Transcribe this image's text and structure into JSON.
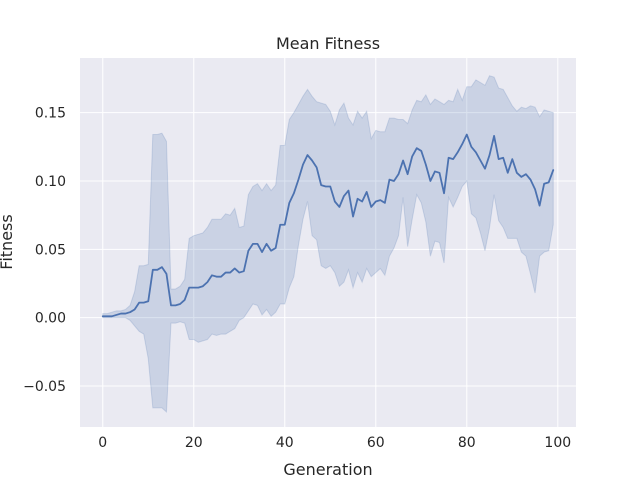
{
  "chart_data": {
    "type": "line",
    "title": "Mean Fitness",
    "xlabel": "Generation",
    "ylabel": "Fitness",
    "xlim": [
      -5,
      104
    ],
    "ylim": [
      -0.08,
      0.19
    ],
    "xticks": [
      0,
      20,
      40,
      60,
      80,
      100
    ],
    "xtick_labels": [
      "0",
      "20",
      "40",
      "60",
      "80",
      "100"
    ],
    "yticks": [
      -0.05,
      0.0,
      0.05,
      0.1,
      0.15
    ],
    "ytick_labels": [
      "−0.05",
      "0.00",
      "0.05",
      "0.10",
      "0.15"
    ],
    "grid": true,
    "colors": {
      "line": "#4c72b0",
      "band": "#4c72b0",
      "plot_bg": "#eaeaf2",
      "grid": "#ffffff"
    },
    "x": [
      0,
      1,
      2,
      3,
      4,
      5,
      6,
      7,
      8,
      9,
      10,
      11,
      12,
      13,
      14,
      15,
      16,
      17,
      18,
      19,
      20,
      21,
      22,
      23,
      24,
      25,
      26,
      27,
      28,
      29,
      30,
      31,
      32,
      33,
      34,
      35,
      36,
      37,
      38,
      39,
      40,
      41,
      42,
      43,
      44,
      45,
      46,
      47,
      48,
      49,
      50,
      51,
      52,
      53,
      54,
      55,
      56,
      57,
      58,
      59,
      60,
      61,
      62,
      63,
      64,
      65,
      66,
      67,
      68,
      69,
      70,
      71,
      72,
      73,
      74,
      75,
      76,
      77,
      78,
      79,
      80,
      81,
      82,
      83,
      84,
      85,
      86,
      87,
      88,
      89,
      90,
      91,
      92,
      93,
      94,
      95,
      96,
      97,
      98,
      99
    ],
    "series": [
      {
        "values": [
          0.001,
          0.001,
          0.001,
          0.002,
          0.003,
          0.003,
          0.004,
          0.006,
          0.011,
          0.011,
          0.012,
          0.035,
          0.035,
          0.037,
          0.032,
          0.009,
          0.009,
          0.01,
          0.013,
          0.022,
          0.022,
          0.022,
          0.023,
          0.026,
          0.031,
          0.03,
          0.03,
          0.033,
          0.033,
          0.036,
          0.033,
          0.034,
          0.049,
          0.054,
          0.054,
          0.048,
          0.054,
          0.049,
          0.051,
          0.068,
          0.068,
          0.084,
          0.091,
          0.101,
          0.112,
          0.119,
          0.115,
          0.11,
          0.097,
          0.096,
          0.096,
          0.085,
          0.081,
          0.089,
          0.093,
          0.074,
          0.087,
          0.085,
          0.092,
          0.081,
          0.085,
          0.086,
          0.084,
          0.101,
          0.1,
          0.105,
          0.115,
          0.105,
          0.118,
          0.124,
          0.122,
          0.112,
          0.1,
          0.107,
          0.106,
          0.091,
          0.117,
          0.116,
          0.121,
          0.127,
          0.134,
          0.125,
          0.121,
          0.115,
          0.109,
          0.119,
          0.133,
          0.116,
          0.117,
          0.106,
          0.116,
          0.106,
          0.103,
          0.105,
          0.101,
          0.094,
          0.082,
          0.098,
          0.099,
          0.108
        ],
        "lower": [
          0.0,
          0.0,
          0.0,
          0.0,
          0.0,
          0.0,
          -0.002,
          -0.006,
          -0.01,
          -0.012,
          -0.03,
          -0.066,
          -0.066,
          -0.066,
          -0.069,
          -0.004,
          -0.004,
          -0.003,
          -0.004,
          -0.016,
          -0.016,
          -0.018,
          -0.017,
          -0.016,
          -0.012,
          -0.013,
          -0.012,
          -0.012,
          -0.01,
          -0.008,
          -0.002,
          0.0,
          0.005,
          0.01,
          0.009,
          0.002,
          0.006,
          0.001,
          0.004,
          0.01,
          0.01,
          0.022,
          0.03,
          0.053,
          0.072,
          0.085,
          0.06,
          0.057,
          0.038,
          0.036,
          0.038,
          0.033,
          0.023,
          0.026,
          0.035,
          0.022,
          0.033,
          0.026,
          0.036,
          0.03,
          0.033,
          0.036,
          0.031,
          0.045,
          0.051,
          0.06,
          0.088,
          0.052,
          0.072,
          0.09,
          0.084,
          0.07,
          0.045,
          0.056,
          0.055,
          0.04,
          0.088,
          0.081,
          0.088,
          0.096,
          0.1,
          0.076,
          0.073,
          0.062,
          0.049,
          0.066,
          0.09,
          0.071,
          0.066,
          0.058,
          0.058,
          0.058,
          0.048,
          0.045,
          0.032,
          0.018,
          0.045,
          0.048,
          0.049,
          0.068
        ],
        "upper": [
          0.003,
          0.003,
          0.004,
          0.005,
          0.005,
          0.006,
          0.009,
          0.019,
          0.038,
          0.038,
          0.039,
          0.134,
          0.134,
          0.135,
          0.129,
          0.021,
          0.021,
          0.023,
          0.028,
          0.058,
          0.06,
          0.061,
          0.062,
          0.066,
          0.072,
          0.072,
          0.072,
          0.076,
          0.075,
          0.08,
          0.066,
          0.067,
          0.09,
          0.096,
          0.098,
          0.093,
          0.098,
          0.093,
          0.097,
          0.126,
          0.126,
          0.145,
          0.15,
          0.156,
          0.162,
          0.167,
          0.162,
          0.158,
          0.157,
          0.156,
          0.151,
          0.141,
          0.152,
          0.157,
          0.146,
          0.141,
          0.151,
          0.146,
          0.151,
          0.131,
          0.137,
          0.136,
          0.136,
          0.146,
          0.146,
          0.145,
          0.145,
          0.142,
          0.152,
          0.159,
          0.158,
          0.163,
          0.156,
          0.16,
          0.158,
          0.156,
          0.159,
          0.158,
          0.167,
          0.159,
          0.169,
          0.169,
          0.174,
          0.172,
          0.17,
          0.177,
          0.176,
          0.168,
          0.167,
          0.161,
          0.155,
          0.151,
          0.154,
          0.153,
          0.155,
          0.154,
          0.147,
          0.152,
          0.151,
          0.15
        ]
      }
    ]
  }
}
